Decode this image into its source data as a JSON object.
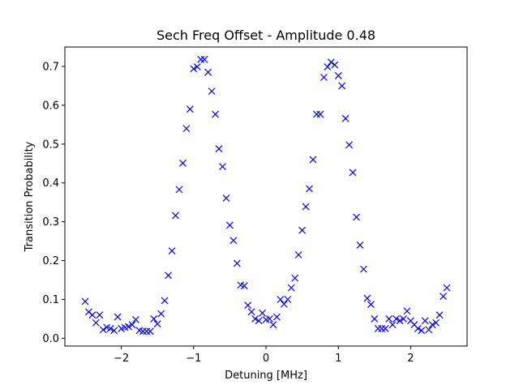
{
  "chart_data": {
    "type": "scatter",
    "title": "Sech Freq Offset - Amplitude 0.48",
    "xlabel": "Detuning [MHz]",
    "ylabel": "Transition Probability",
    "xlim": [
      -2.78,
      2.78
    ],
    "ylim": [
      -0.02,
      0.75
    ],
    "xticks": [
      -2,
      -1,
      0,
      1,
      2
    ],
    "xtick_labels": [
      "−2",
      "−1",
      "0",
      "1",
      "2"
    ],
    "yticks": [
      0.0,
      0.1,
      0.2,
      0.3,
      0.4,
      0.5,
      0.6,
      0.7
    ],
    "ytick_labels": [
      "0.0",
      "0.1",
      "0.2",
      "0.3",
      "0.4",
      "0.5",
      "0.6",
      "0.7"
    ],
    "grid": false,
    "marker": "x",
    "marker_color": "#0000ff",
    "points": [
      [
        -2.5,
        0.095
      ],
      [
        -2.45,
        0.068
      ],
      [
        -2.4,
        0.06
      ],
      [
        -2.35,
        0.04
      ],
      [
        -2.3,
        0.06
      ],
      [
        -2.25,
        0.022
      ],
      [
        -2.2,
        0.028
      ],
      [
        -2.15,
        0.025
      ],
      [
        -2.1,
        0.02
      ],
      [
        -2.05,
        0.055
      ],
      [
        -2.0,
        0.025
      ],
      [
        -1.95,
        0.028
      ],
      [
        -1.9,
        0.03
      ],
      [
        -1.85,
        0.035
      ],
      [
        -1.8,
        0.048
      ],
      [
        -1.75,
        0.02
      ],
      [
        -1.7,
        0.018
      ],
      [
        -1.65,
        0.018
      ],
      [
        -1.6,
        0.018
      ],
      [
        -1.55,
        0.05
      ],
      [
        -1.5,
        0.037
      ],
      [
        -1.45,
        0.063
      ],
      [
        -1.4,
        0.097
      ],
      [
        -1.35,
        0.162
      ],
      [
        -1.3,
        0.225
      ],
      [
        -1.25,
        0.316
      ],
      [
        -1.2,
        0.383
      ],
      [
        -1.15,
        0.451
      ],
      [
        -1.1,
        0.54
      ],
      [
        -1.05,
        0.59
      ],
      [
        -1.0,
        0.694
      ],
      [
        -0.95,
        0.699
      ],
      [
        -0.9,
        0.718
      ],
      [
        -0.85,
        0.718
      ],
      [
        -0.8,
        0.685
      ],
      [
        -0.75,
        0.636
      ],
      [
        -0.7,
        0.577
      ],
      [
        -0.65,
        0.488
      ],
      [
        -0.6,
        0.442
      ],
      [
        -0.55,
        0.361
      ],
      [
        -0.5,
        0.291
      ],
      [
        -0.45,
        0.252
      ],
      [
        -0.4,
        0.193
      ],
      [
        -0.35,
        0.137
      ],
      [
        -0.3,
        0.135
      ],
      [
        -0.25,
        0.085
      ],
      [
        -0.2,
        0.068
      ],
      [
        -0.15,
        0.05
      ],
      [
        -0.1,
        0.045
      ],
      [
        -0.05,
        0.065
      ],
      [
        0.0,
        0.048
      ],
      [
        0.05,
        0.05
      ],
      [
        0.1,
        0.035
      ],
      [
        0.15,
        0.055
      ],
      [
        0.2,
        0.1
      ],
      [
        0.25,
        0.088
      ],
      [
        0.3,
        0.1
      ],
      [
        0.35,
        0.13
      ],
      [
        0.4,
        0.155
      ],
      [
        0.45,
        0.215
      ],
      [
        0.5,
        0.278
      ],
      [
        0.55,
        0.339
      ],
      [
        0.6,
        0.385
      ],
      [
        0.65,
        0.46
      ],
      [
        0.7,
        0.577
      ],
      [
        0.75,
        0.577
      ],
      [
        0.8,
        0.672
      ],
      [
        0.85,
        0.699
      ],
      [
        0.9,
        0.711
      ],
      [
        0.95,
        0.704
      ],
      [
        1.0,
        0.676
      ],
      [
        1.05,
        0.65
      ],
      [
        1.1,
        0.566
      ],
      [
        1.15,
        0.498
      ],
      [
        1.2,
        0.427
      ],
      [
        1.25,
        0.312
      ],
      [
        1.3,
        0.24
      ],
      [
        1.35,
        0.178
      ],
      [
        1.4,
        0.103
      ],
      [
        1.45,
        0.087
      ],
      [
        1.5,
        0.05
      ],
      [
        1.55,
        0.025
      ],
      [
        1.6,
        0.025
      ],
      [
        1.65,
        0.025
      ],
      [
        1.7,
        0.05
      ],
      [
        1.75,
        0.035
      ],
      [
        1.8,
        0.05
      ],
      [
        1.85,
        0.045
      ],
      [
        1.9,
        0.05
      ],
      [
        1.95,
        0.07
      ],
      [
        2.0,
        0.045
      ],
      [
        2.05,
        0.035
      ],
      [
        2.1,
        0.025
      ],
      [
        2.15,
        0.02
      ],
      [
        2.2,
        0.045
      ],
      [
        2.25,
        0.022
      ],
      [
        2.3,
        0.035
      ],
      [
        2.35,
        0.04
      ],
      [
        2.4,
        0.06
      ],
      [
        2.45,
        0.108
      ],
      [
        2.5,
        0.13
      ]
    ]
  }
}
